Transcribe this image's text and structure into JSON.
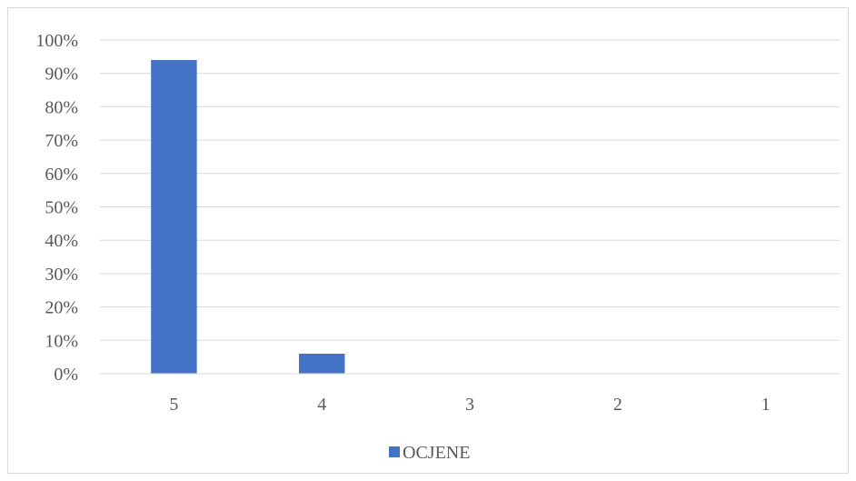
{
  "chart_data": {
    "type": "bar",
    "title": "",
    "xlabel": "",
    "ylabel": "",
    "categories": [
      "5",
      "4",
      "3",
      "2",
      "1"
    ],
    "series": [
      {
        "name": "OCJENE",
        "values": [
          94,
          6,
          0,
          0,
          0
        ],
        "color": "#4472C4"
      }
    ],
    "ylim": [
      0,
      100
    ],
    "ytick_step": 10,
    "ytick_suffix": "%",
    "grid": true,
    "legend_position": "bottom"
  }
}
